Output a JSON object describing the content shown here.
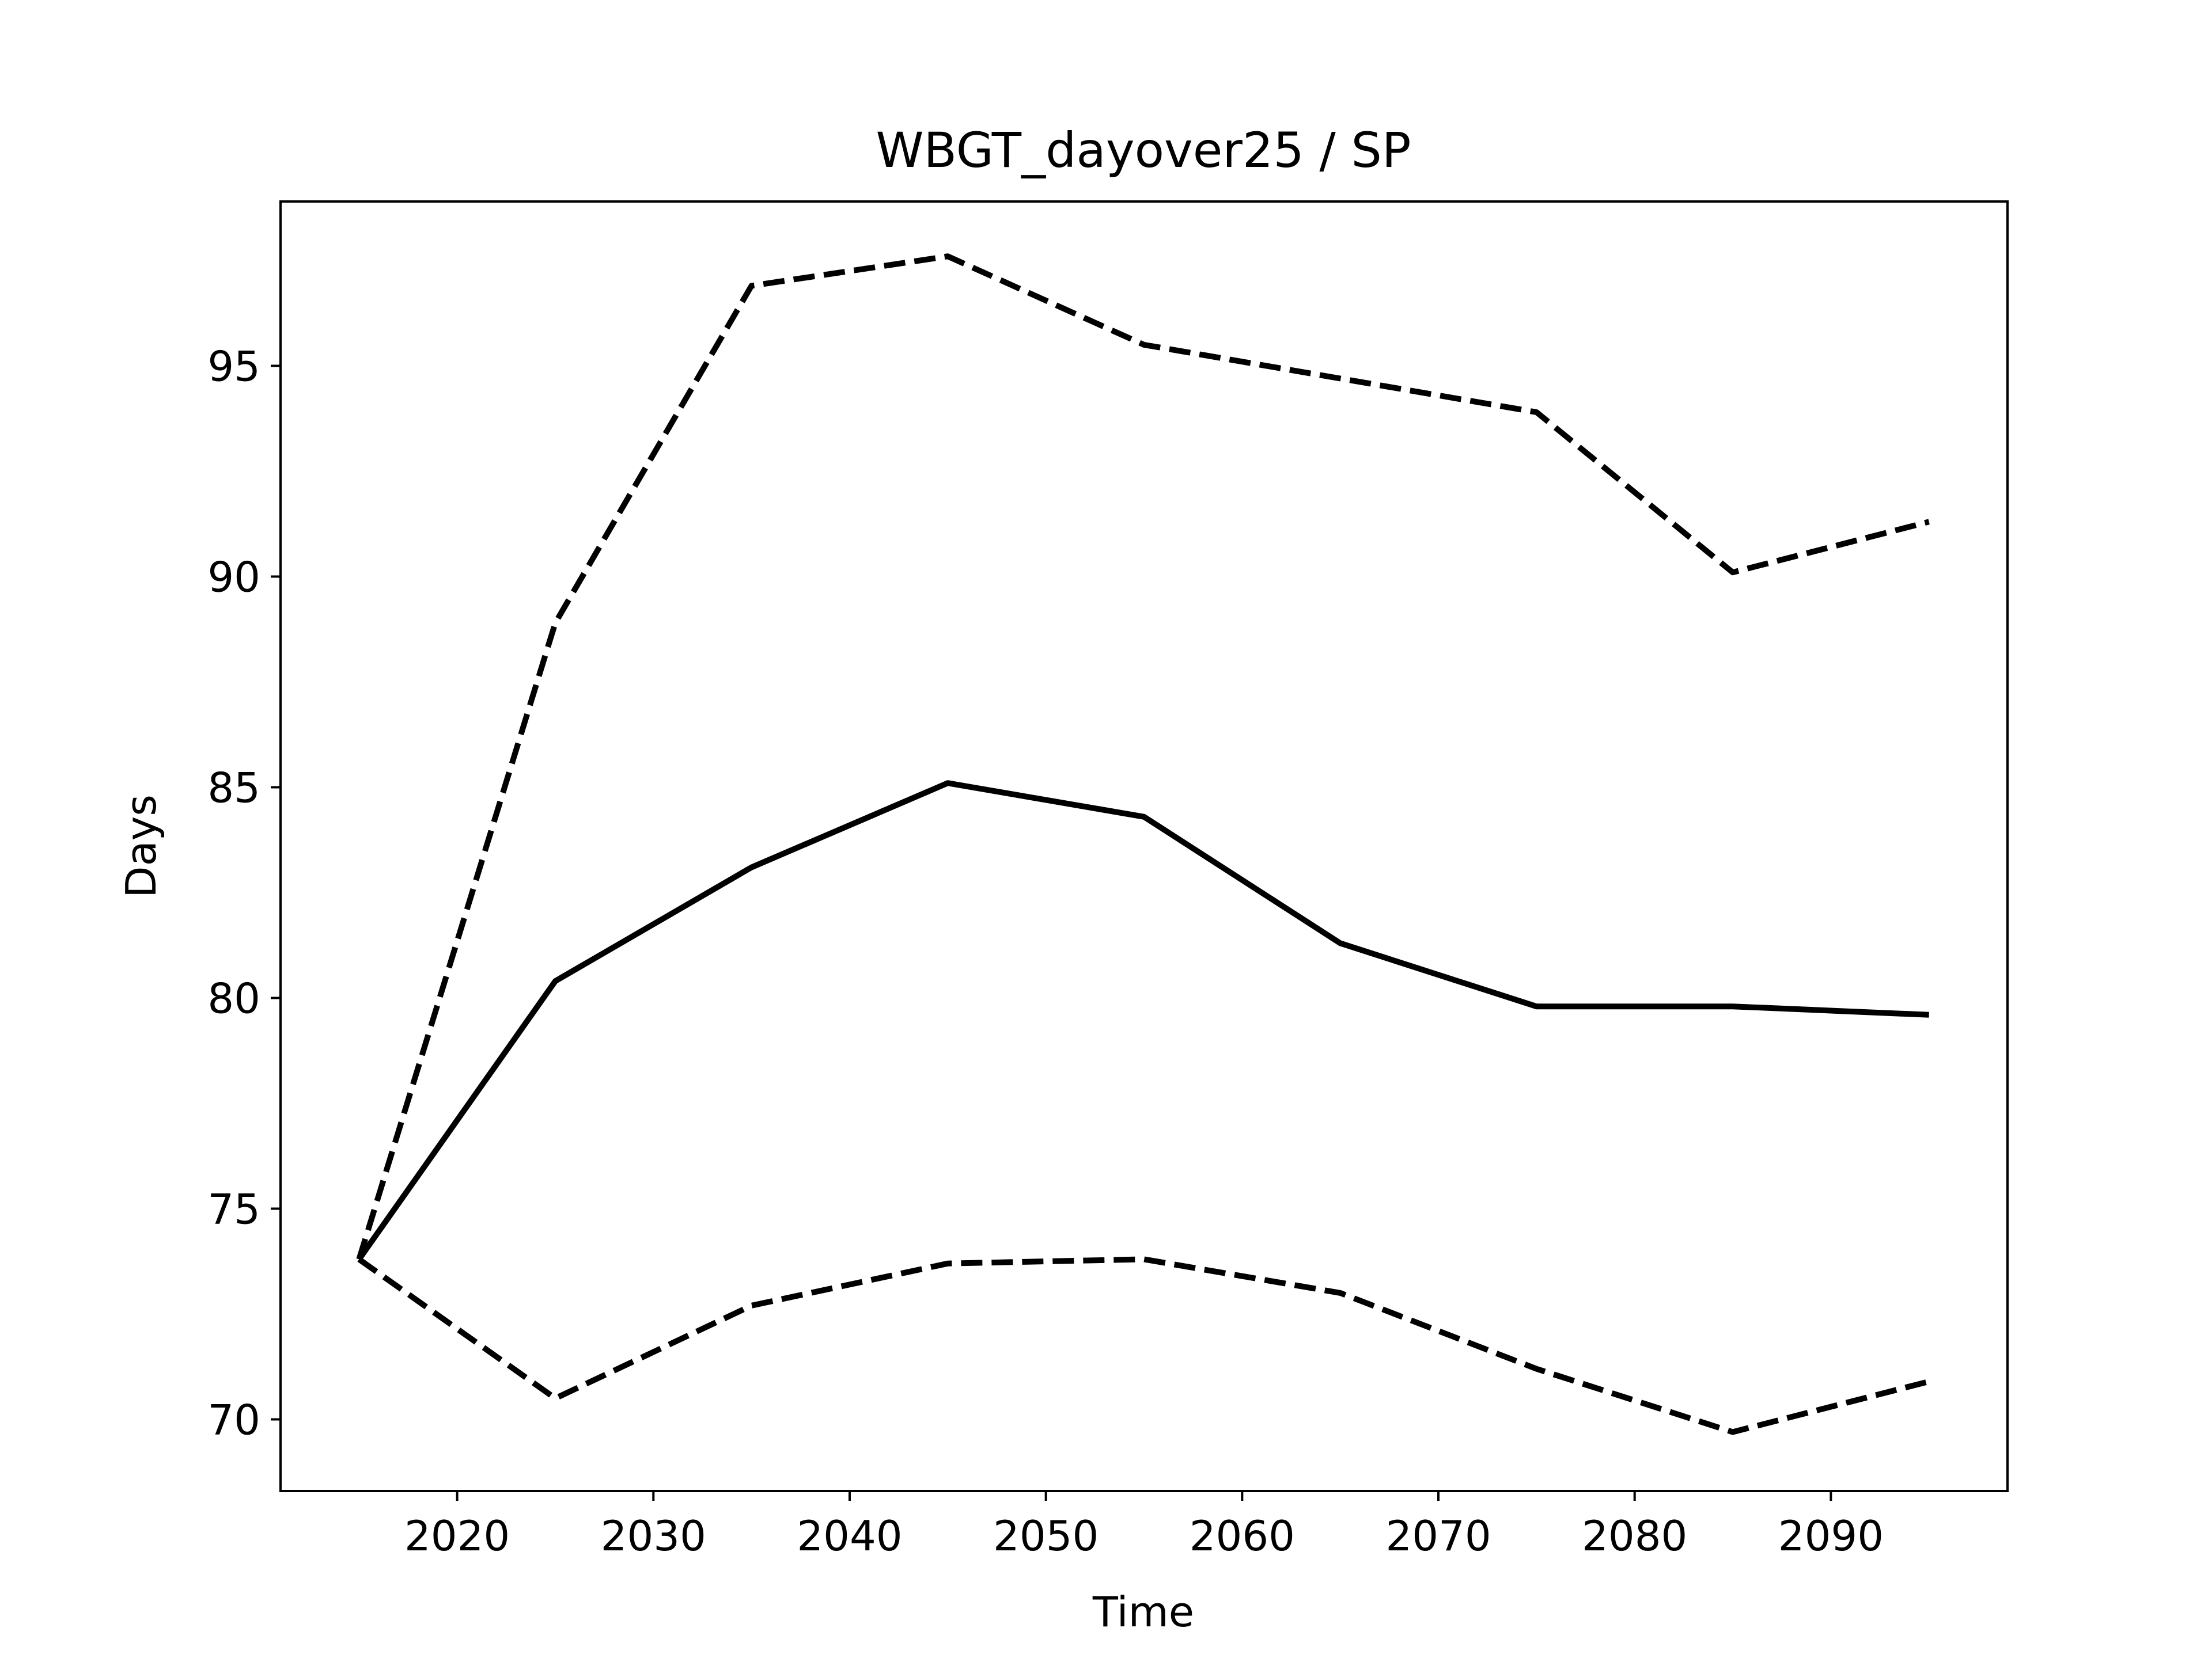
{
  "chart_data": {
    "type": "line",
    "title": "WBGT_dayover25 / SP",
    "xlabel": "Time",
    "ylabel": "Days",
    "xlim": [
      2011,
      2099
    ],
    "ylim": [
      68.3,
      98.9
    ],
    "x_ticks": [
      2020,
      2030,
      2040,
      2050,
      2060,
      2070,
      2080,
      2090
    ],
    "x_tick_labels": [
      "2020",
      "2030",
      "2040",
      "2050",
      "2060",
      "2070",
      "2080",
      "2090"
    ],
    "y_ticks": [
      70,
      75,
      80,
      85,
      90,
      95
    ],
    "y_tick_labels": [
      "70",
      "75",
      "80",
      "85",
      "90",
      "95"
    ],
    "grid": false,
    "legend": "none",
    "x": [
      2015,
      2025,
      2035,
      2045,
      2055,
      2065,
      2075,
      2085,
      2095
    ],
    "series": [
      {
        "style": "dashed",
        "color": "#000000",
        "values": [
          73.8,
          88.9,
          96.9,
          97.6,
          95.5,
          94.7,
          93.9,
          90.1,
          91.3
        ]
      },
      {
        "style": "solid",
        "color": "#000000",
        "values": [
          73.8,
          80.4,
          83.1,
          85.1,
          84.3,
          81.3,
          79.8,
          79.8,
          79.6
        ]
      },
      {
        "style": "dashed",
        "color": "#000000",
        "values": [
          73.8,
          70.5,
          72.7,
          73.7,
          73.8,
          73.0,
          71.2,
          69.7,
          70.9
        ]
      }
    ]
  }
}
